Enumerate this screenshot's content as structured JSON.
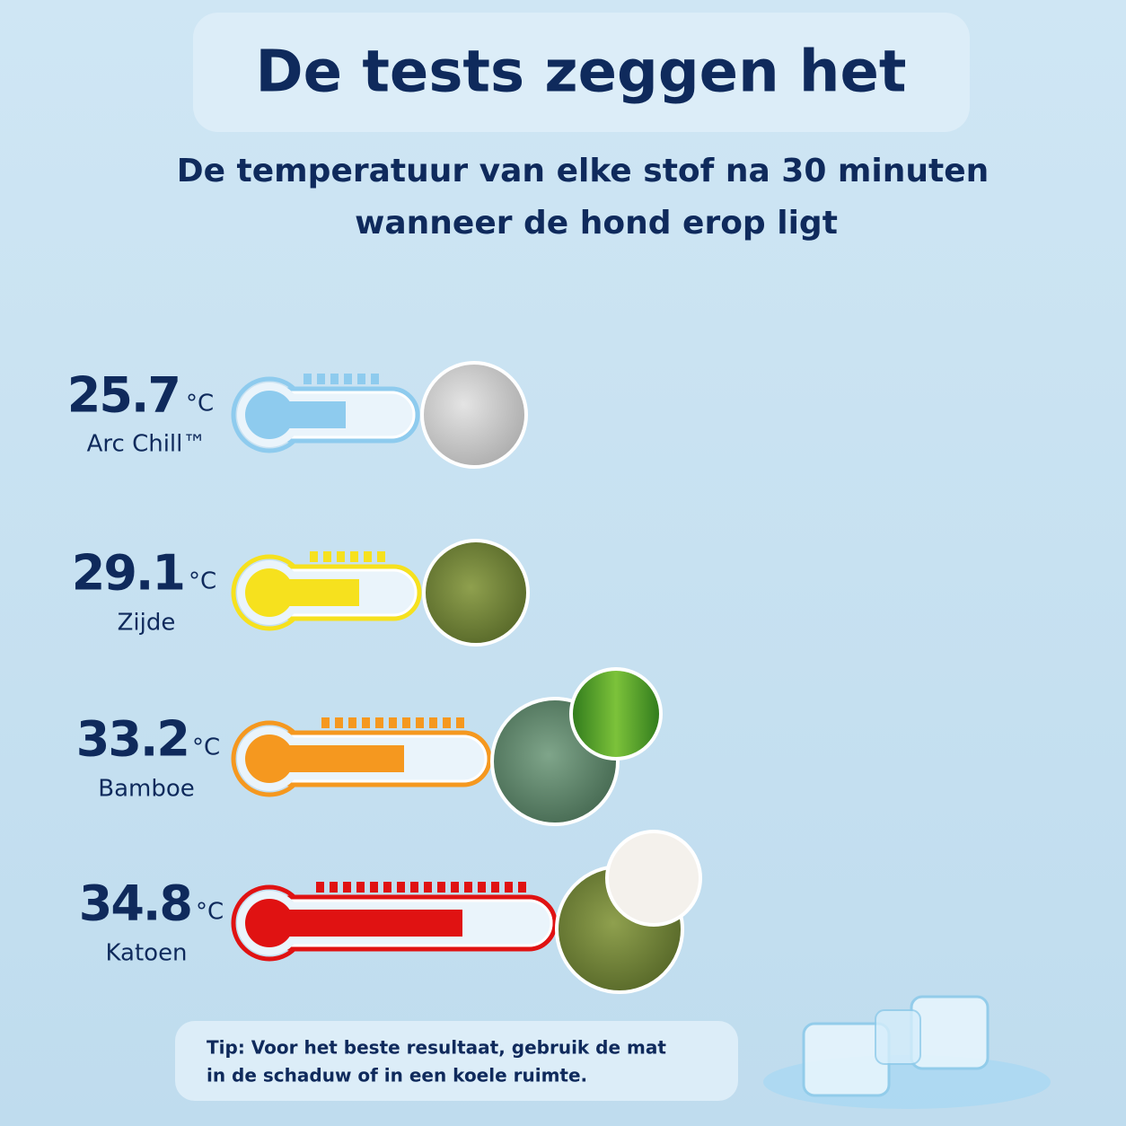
{
  "title": "De tests zeggen het",
  "subtitle": [
    "De temperatuur van elke stof na 30 minuten",
    "wanneer de hond erop ligt"
  ],
  "unit": "°C",
  "items": [
    {
      "value": 25.7,
      "label": "Arc Chill™"
    },
    {
      "value": 29.1,
      "label": "Zijde"
    },
    {
      "value": 33.2,
      "label": "Bamboe"
    },
    {
      "value": 34.8,
      "label": "Katoen"
    }
  ],
  "tip": [
    "Tip:  Voor het beste resultaat, gebruik de mat",
    "in de schaduw of in een koele ruimte."
  ]
}
